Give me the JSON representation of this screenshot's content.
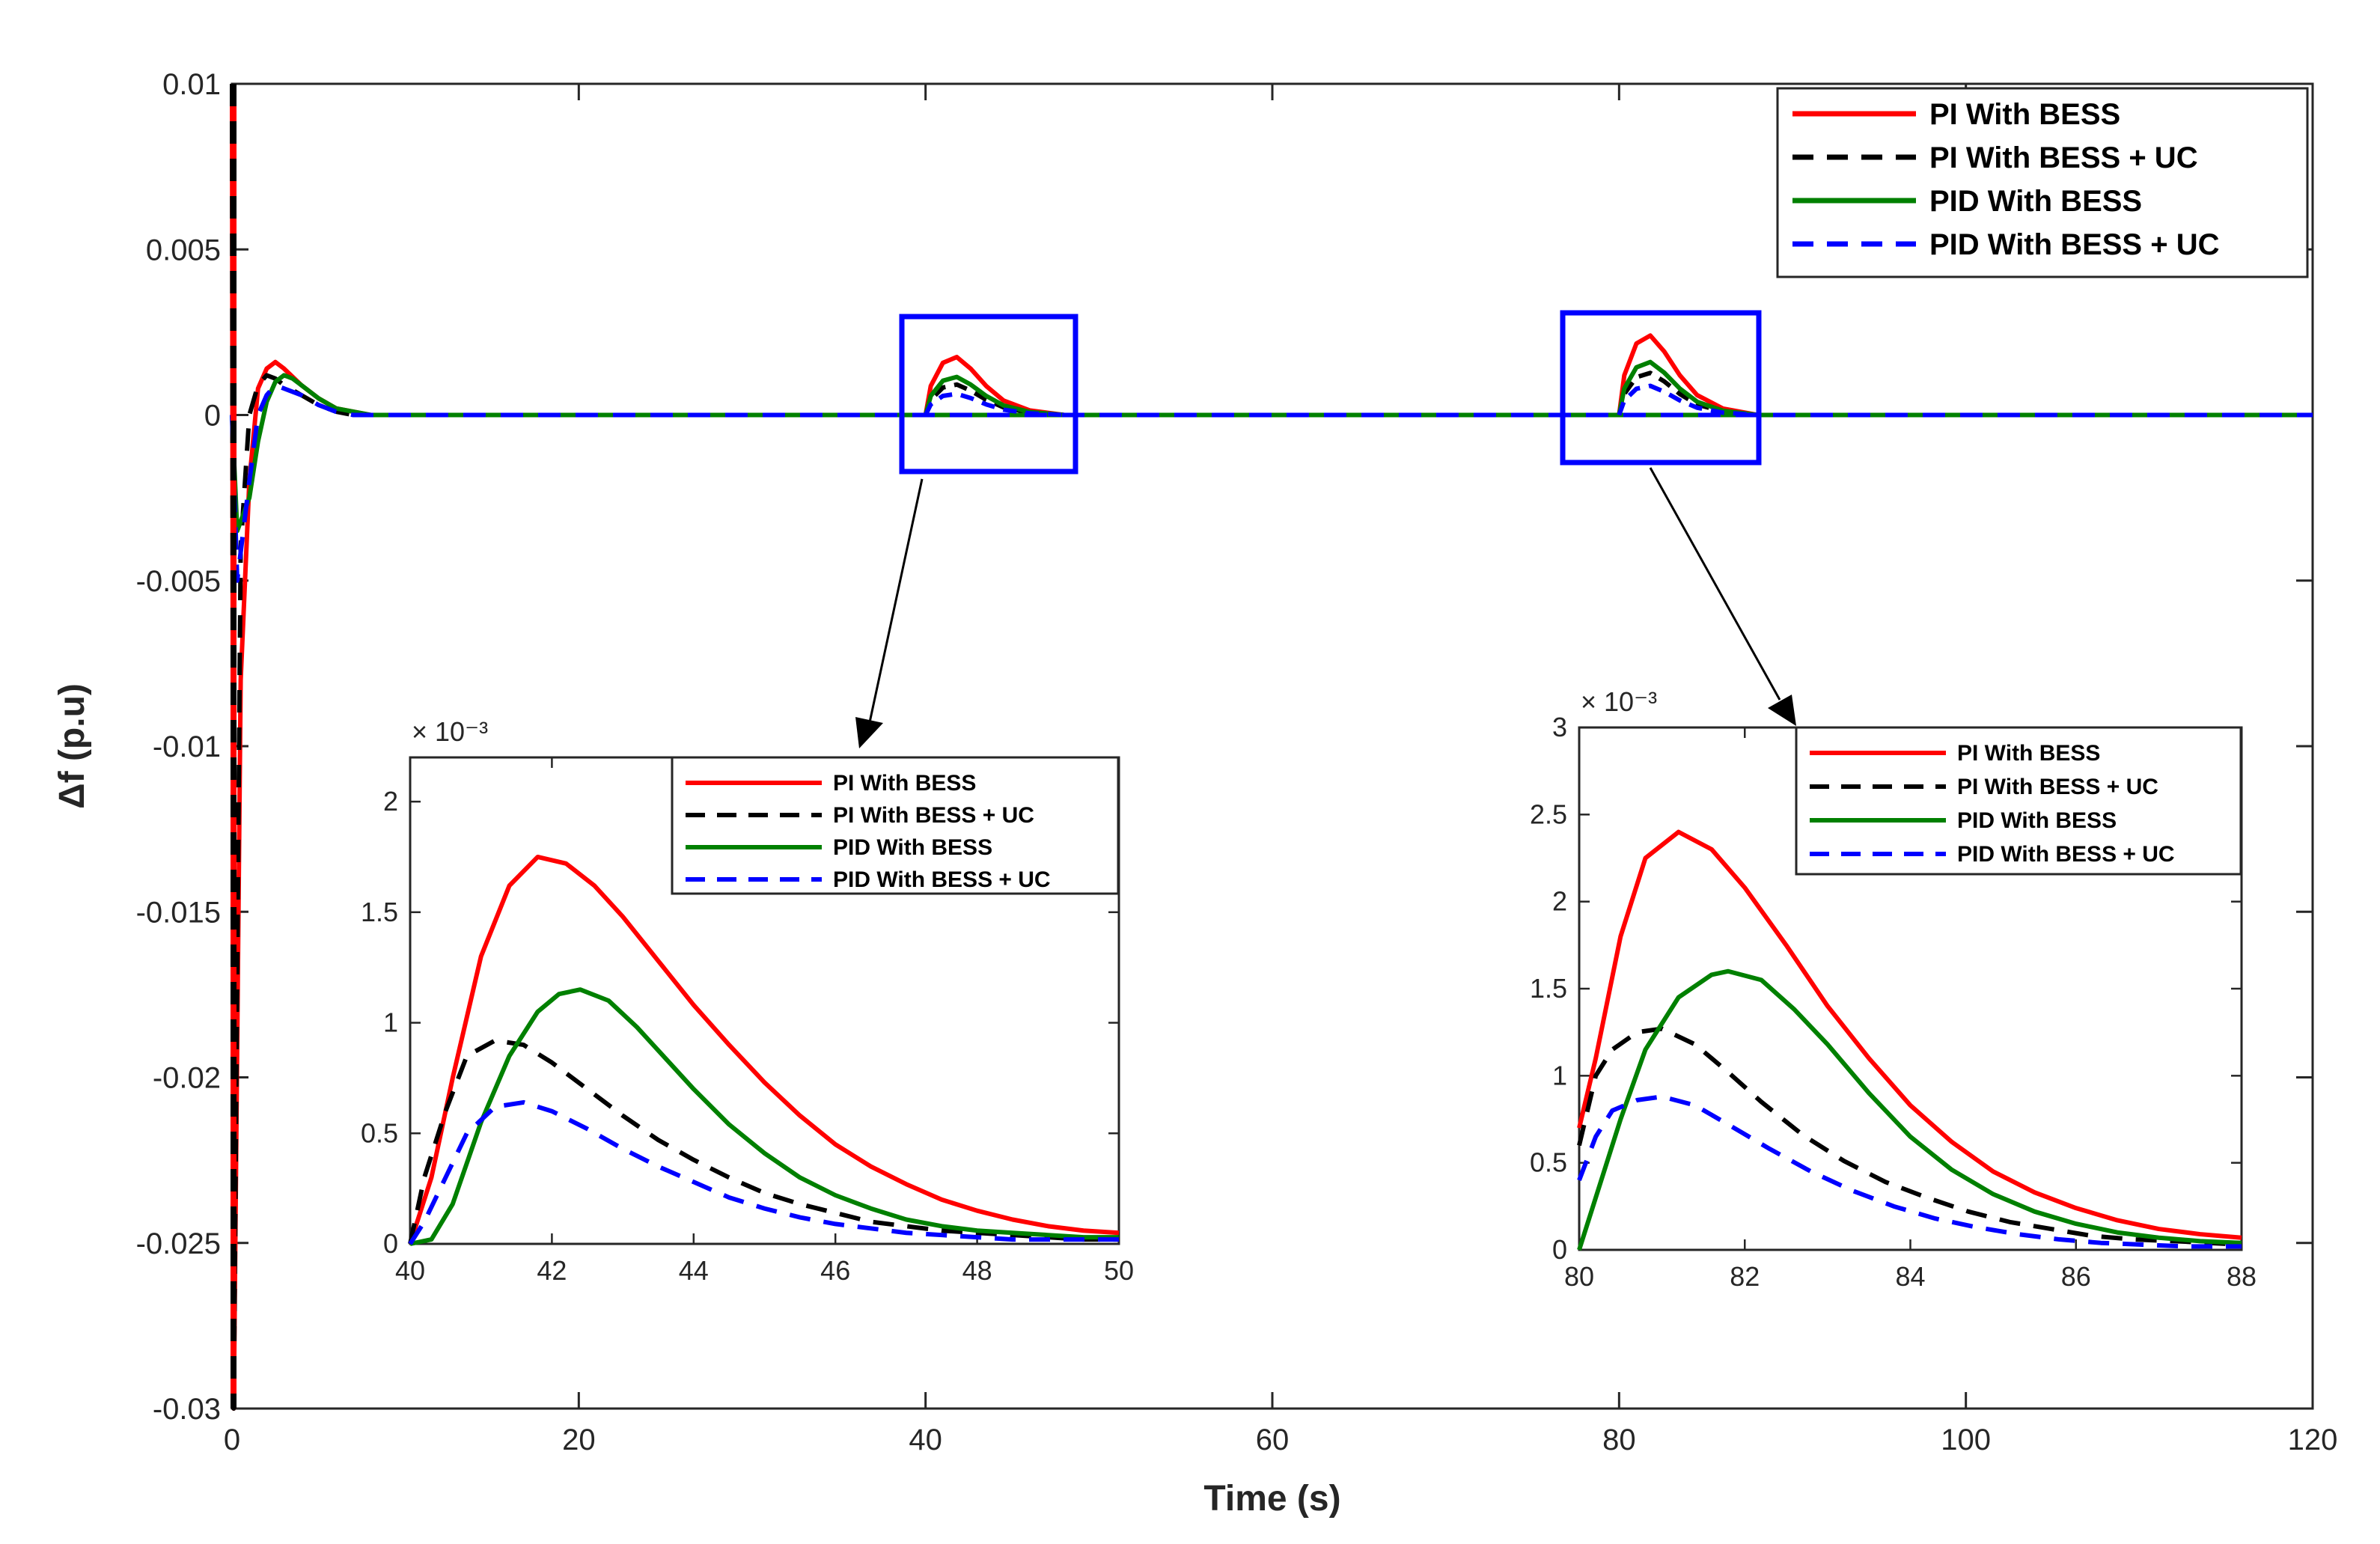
{
  "chart_data": {
    "type": "line",
    "main": {
      "xlabel": "Time (s)",
      "ylabel": "Δf (p.u)",
      "xlim": [
        0,
        120
      ],
      "ylim": [
        -0.03,
        0.01
      ],
      "xticks": [
        0,
        20,
        40,
        60,
        80,
        100,
        120
      ],
      "yticks": [
        0.01,
        0.005,
        0,
        -0.005,
        -0.01,
        -0.015,
        -0.02,
        -0.025,
        -0.03
      ],
      "ytick_labels": [
        "0.01",
        "0.005",
        "0",
        "-0.005",
        "-0.01",
        "-0.015",
        "-0.02",
        "-0.025",
        "-0.03"
      ],
      "legend_position": "top-right",
      "series": [
        {
          "name": "PI With BESS",
          "color": "#ff0000",
          "dash": "solid",
          "t": [
            0,
            0.1,
            0.5,
            1,
            1.5,
            2,
            2.5,
            3,
            4,
            5,
            6,
            7,
            8,
            10
          ],
          "y": [
            0.01,
            -0.03,
            -0.008,
            -0.002,
            0.0008,
            0.0014,
            0.0016,
            0.0014,
            0.0009,
            0.0005,
            0.0002,
            0.0001,
            0,
            0
          ]
        },
        {
          "name": "PI With BESS + UC",
          "color": "#000000",
          "dash": "dashed",
          "t": [
            0,
            0.1,
            0.5,
            1,
            1.5,
            2,
            2.5,
            3,
            4,
            5,
            6,
            7,
            8,
            10
          ],
          "y": [
            0.01,
            -0.03,
            -0.004,
            0,
            0.0009,
            0.0012,
            0.0011,
            0.0009,
            0.0006,
            0.0003,
            0.0001,
            0,
            0,
            0
          ]
        },
        {
          "name": "PID With BESS",
          "color": "#008000",
          "dash": "solid",
          "t": [
            0,
            0.3,
            1,
            1.5,
            2,
            2.5,
            3,
            3.5,
            4,
            5,
            6,
            7,
            8,
            10
          ],
          "y": [
            0,
            -0.0035,
            -0.0025,
            -0.0008,
            0.0004,
            0.001,
            0.0012,
            0.0011,
            0.0009,
            0.0005,
            0.0002,
            0.0001,
            0,
            0
          ]
        },
        {
          "name": "PID With BESS + UC",
          "color": "#0000ff",
          "dash": "dashed",
          "t": [
            0,
            0.3,
            1,
            1.5,
            2,
            2.5,
            3,
            4,
            5,
            6,
            7,
            8,
            10
          ],
          "y": [
            0,
            -0.005,
            -0.002,
            0,
            0.0006,
            0.0009,
            0.0008,
            0.0006,
            0.0003,
            0.0001,
            0,
            0,
            0
          ]
        }
      ],
      "disturbance_peaks_x1e3": [
        {
          "t0": 40,
          "peaks": [
            1.75,
            0.92,
            1.15,
            0.64
          ]
        },
        {
          "t0": 80,
          "peaks": [
            2.4,
            1.27,
            1.6,
            0.88
          ]
        }
      ]
    },
    "insets": [
      {
        "exponent_label": "× 10⁻³",
        "xlim": [
          40,
          50
        ],
        "ylim": [
          0,
          2.2
        ],
        "xticks": [
          40,
          42,
          44,
          46,
          48,
          50
        ],
        "yticks": [
          0,
          0.5,
          1,
          1.5,
          2
        ],
        "ytick_labels": [
          "0",
          "0.5",
          "1",
          "1.5",
          "2"
        ],
        "legend_position": "top-right",
        "series": [
          {
            "name": "PI With BESS",
            "color": "#ff0000",
            "dash": "solid",
            "x": [
              40,
              40.3,
              40.6,
              41,
              41.4,
              41.8,
              42.2,
              42.6,
              43,
              43.5,
              44,
              44.5,
              45,
              45.5,
              46,
              46.5,
              47,
              47.5,
              48,
              48.5,
              49,
              49.5,
              50
            ],
            "y": [
              0,
              0.3,
              0.75,
              1.3,
              1.62,
              1.75,
              1.72,
              1.62,
              1.48,
              1.28,
              1.08,
              0.9,
              0.73,
              0.58,
              0.45,
              0.35,
              0.27,
              0.2,
              0.15,
              0.11,
              0.08,
              0.06,
              0.05
            ]
          },
          {
            "name": "PI With BESS + UC",
            "color": "#000000",
            "dash": "dashed",
            "x": [
              40,
              40.2,
              40.5,
              40.8,
              41.2,
              41.6,
              42,
              42.5,
              43,
              43.5,
              44,
              44.5,
              45,
              45.5,
              46,
              46.5,
              47,
              47.5,
              48,
              48.5,
              49,
              49.5,
              50
            ],
            "y": [
              0,
              0.3,
              0.6,
              0.85,
              0.92,
              0.9,
              0.82,
              0.7,
              0.58,
              0.47,
              0.38,
              0.3,
              0.23,
              0.18,
              0.14,
              0.1,
              0.08,
              0.06,
              0.05,
              0.04,
              0.03,
              0.02,
              0.02
            ]
          },
          {
            "name": "PID With BESS",
            "color": "#008000",
            "dash": "solid",
            "x": [
              40,
              40.3,
              40.6,
              41,
              41.4,
              41.8,
              42.1,
              42.4,
              42.8,
              43.2,
              43.6,
              44,
              44.5,
              45,
              45.5,
              46,
              46.5,
              47,
              47.5,
              48,
              48.5,
              49,
              49.5,
              50
            ],
            "y": [
              0,
              0.02,
              0.18,
              0.55,
              0.85,
              1.05,
              1.13,
              1.15,
              1.1,
              0.98,
              0.84,
              0.7,
              0.54,
              0.41,
              0.3,
              0.22,
              0.16,
              0.11,
              0.08,
              0.06,
              0.05,
              0.04,
              0.03,
              0.03
            ]
          },
          {
            "name": "PID With BESS + UC",
            "color": "#0000ff",
            "dash": "dashed",
            "x": [
              40,
              40.2,
              40.5,
              40.8,
              41.2,
              41.6,
              42,
              42.5,
              43,
              43.5,
              44,
              44.5,
              45,
              45.5,
              46,
              46.5,
              47,
              47.5,
              48,
              48.5,
              49,
              49.5,
              50
            ],
            "y": [
              0,
              0.1,
              0.3,
              0.5,
              0.62,
              0.64,
              0.6,
              0.52,
              0.43,
              0.35,
              0.28,
              0.21,
              0.16,
              0.12,
              0.09,
              0.07,
              0.05,
              0.04,
              0.03,
              0.02,
              0.02,
              0.02,
              0.02
            ]
          }
        ]
      },
      {
        "exponent_label": "× 10⁻³",
        "xlim": [
          80,
          88
        ],
        "ylim": [
          0,
          3
        ],
        "xticks": [
          80,
          82,
          84,
          86,
          88
        ],
        "yticks": [
          0,
          0.5,
          1,
          1.5,
          2,
          2.5,
          3
        ],
        "ytick_labels": [
          "0",
          "0.5",
          "1",
          "1.5",
          "2",
          "2.5",
          "3"
        ],
        "legend_position": "top-right",
        "series": [
          {
            "name": "PI With BESS",
            "color": "#ff0000",
            "dash": "solid",
            "x": [
              80,
              80.2,
              80.5,
              80.8,
              81.2,
              81.6,
              82,
              82.5,
              83,
              83.5,
              84,
              84.5,
              85,
              85.5,
              86,
              86.5,
              87,
              87.5,
              88
            ],
            "y": [
              0.7,
              1.1,
              1.8,
              2.25,
              2.4,
              2.3,
              2.08,
              1.75,
              1.4,
              1.1,
              0.83,
              0.62,
              0.45,
              0.33,
              0.24,
              0.17,
              0.12,
              0.09,
              0.07
            ]
          },
          {
            "name": "PI With BESS + UC",
            "color": "#000000",
            "dash": "dashed",
            "x": [
              80,
              80.2,
              80.4,
              80.7,
              81,
              81.4,
              81.8,
              82.2,
              82.7,
              83.2,
              83.7,
              84.2,
              84.7,
              85.2,
              85.7,
              86.2,
              86.7,
              87.2,
              87.6,
              88
            ],
            "y": [
              0.6,
              1.0,
              1.15,
              1.25,
              1.27,
              1.18,
              1.02,
              0.85,
              0.66,
              0.51,
              0.39,
              0.3,
              0.22,
              0.16,
              0.12,
              0.08,
              0.06,
              0.05,
              0.04,
              0.03
            ]
          },
          {
            "name": "PID With BESS",
            "color": "#008000",
            "dash": "solid",
            "x": [
              80,
              80.2,
              80.5,
              80.8,
              81.2,
              81.6,
              81.8,
              82.2,
              82.6,
              83,
              83.5,
              84,
              84.5,
              85,
              85.5,
              86,
              86.5,
              87,
              87.5,
              88
            ],
            "y": [
              0,
              0.3,
              0.75,
              1.15,
              1.45,
              1.58,
              1.6,
              1.55,
              1.38,
              1.18,
              0.9,
              0.65,
              0.46,
              0.32,
              0.22,
              0.15,
              0.1,
              0.07,
              0.05,
              0.04
            ]
          },
          {
            "name": "PID With BESS + UC",
            "color": "#0000ff",
            "dash": "dashed",
            "x": [
              80,
              80.2,
              80.4,
              80.7,
              81,
              81.4,
              81.8,
              82.3,
              82.8,
              83.3,
              83.8,
              84.3,
              84.8,
              85.3,
              85.8,
              86.3,
              86.8,
              87.3,
              88
            ],
            "y": [
              0.4,
              0.65,
              0.8,
              0.86,
              0.88,
              0.83,
              0.72,
              0.58,
              0.45,
              0.34,
              0.25,
              0.18,
              0.13,
              0.09,
              0.06,
              0.04,
              0.03,
              0.02,
              0.02
            ]
          }
        ]
      }
    ]
  }
}
